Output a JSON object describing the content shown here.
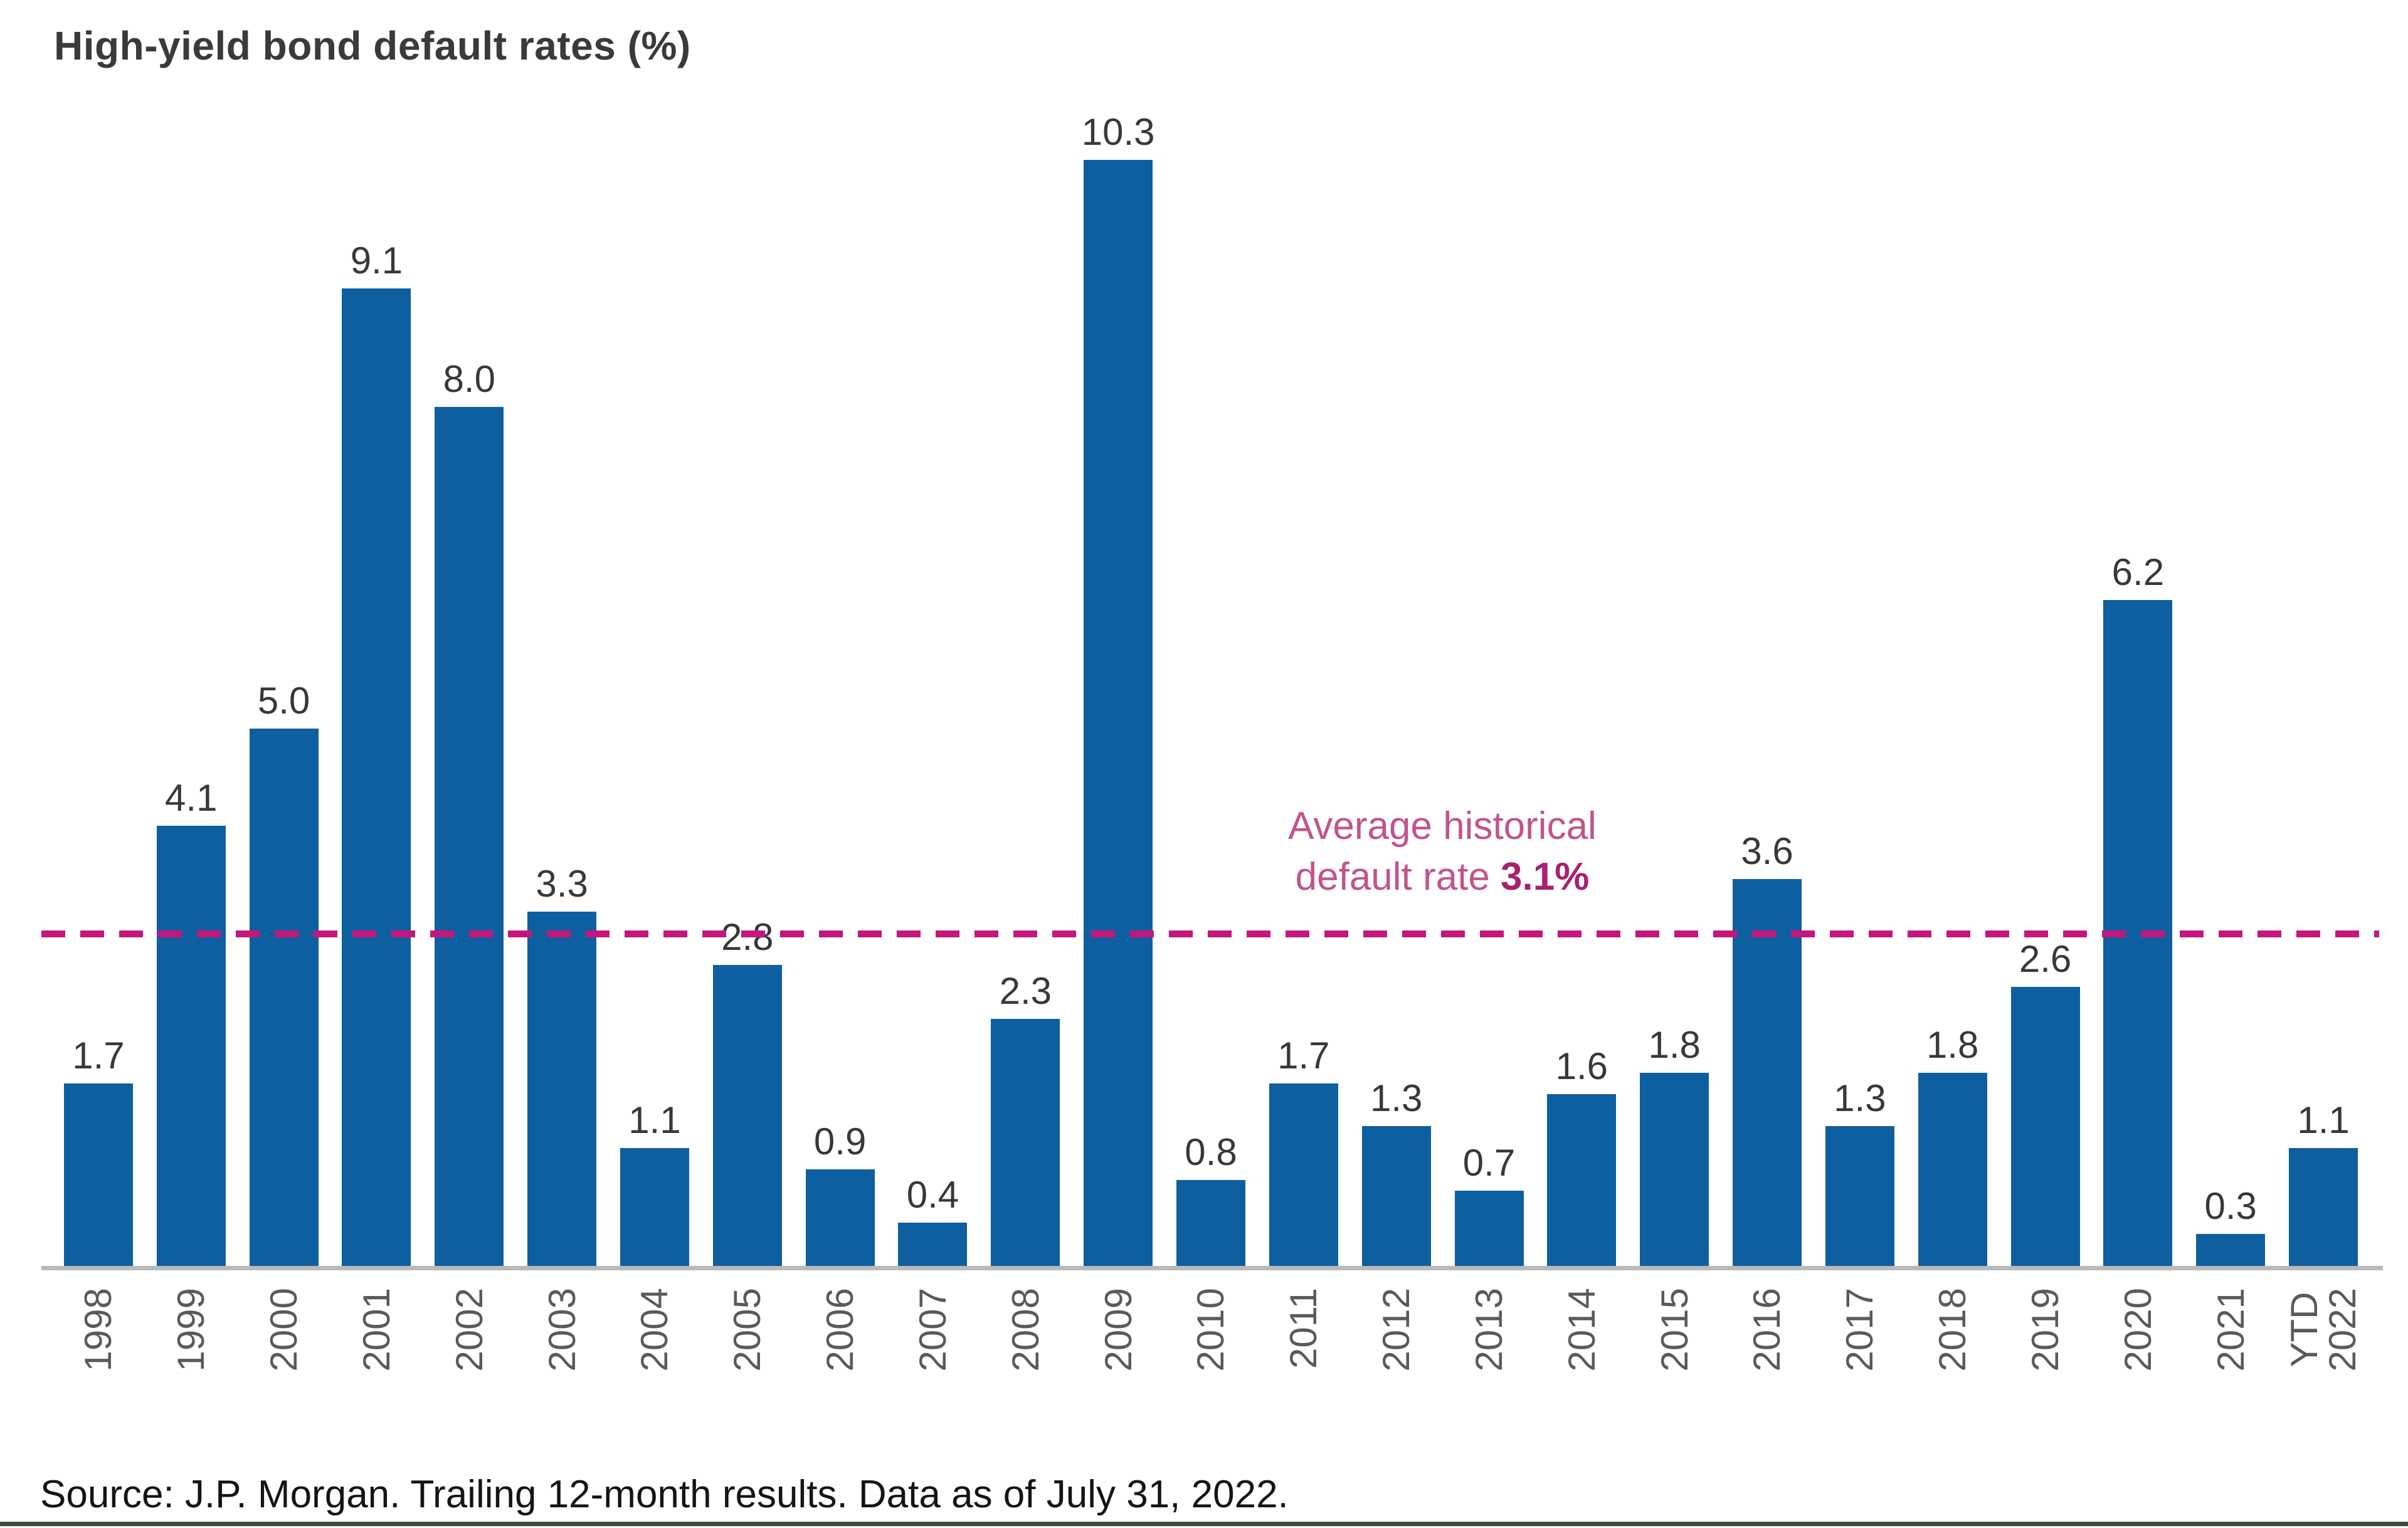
{
  "title": "High-yield bond default rates (%)",
  "source": "Source: J.P. Morgan. Trailing 12-month results. Data as of July 31, 2022.",
  "annotation": {
    "line1": "Average historical",
    "line2_prefix": "default rate ",
    "line2_value": "3.1%"
  },
  "colors": {
    "bar": "#0E5F9F",
    "avg_line": "#C4177C",
    "annotation_text": "#C2538F",
    "annotation_value": "#A92070",
    "value_label": "#383838",
    "year_label": "#5A5A5A",
    "title": "#3A3A3A",
    "source": "#141414",
    "axis": "#B9B9B9",
    "bottom_rule": "#3D4A3D"
  },
  "chart_data": {
    "type": "bar",
    "title": "High-yield bond default rates (%)",
    "categories": [
      "1998",
      "1999",
      "2000",
      "2001",
      "2002",
      "2003",
      "2004",
      "2005",
      "2006",
      "2007",
      "2008",
      "2009",
      "2010",
      "2011",
      "2012",
      "2013",
      "2014",
      "2015",
      "2016",
      "2017",
      "2018",
      "2019",
      "2020",
      "2021",
      "YTD\n2022"
    ],
    "values": [
      1.7,
      4.1,
      5.0,
      9.1,
      8.0,
      3.3,
      1.1,
      2.8,
      0.9,
      0.4,
      2.3,
      10.3,
      0.8,
      1.7,
      1.3,
      0.7,
      1.6,
      1.8,
      3.6,
      1.3,
      1.8,
      2.6,
      6.2,
      0.3,
      1.1
    ],
    "xlabel": "",
    "ylabel": "",
    "ylim": [
      0,
      10.8
    ],
    "grid": false,
    "legend": false,
    "data_labels": true,
    "average_line": {
      "value": 3.1,
      "label": "Average historical default rate 3.1%"
    }
  }
}
